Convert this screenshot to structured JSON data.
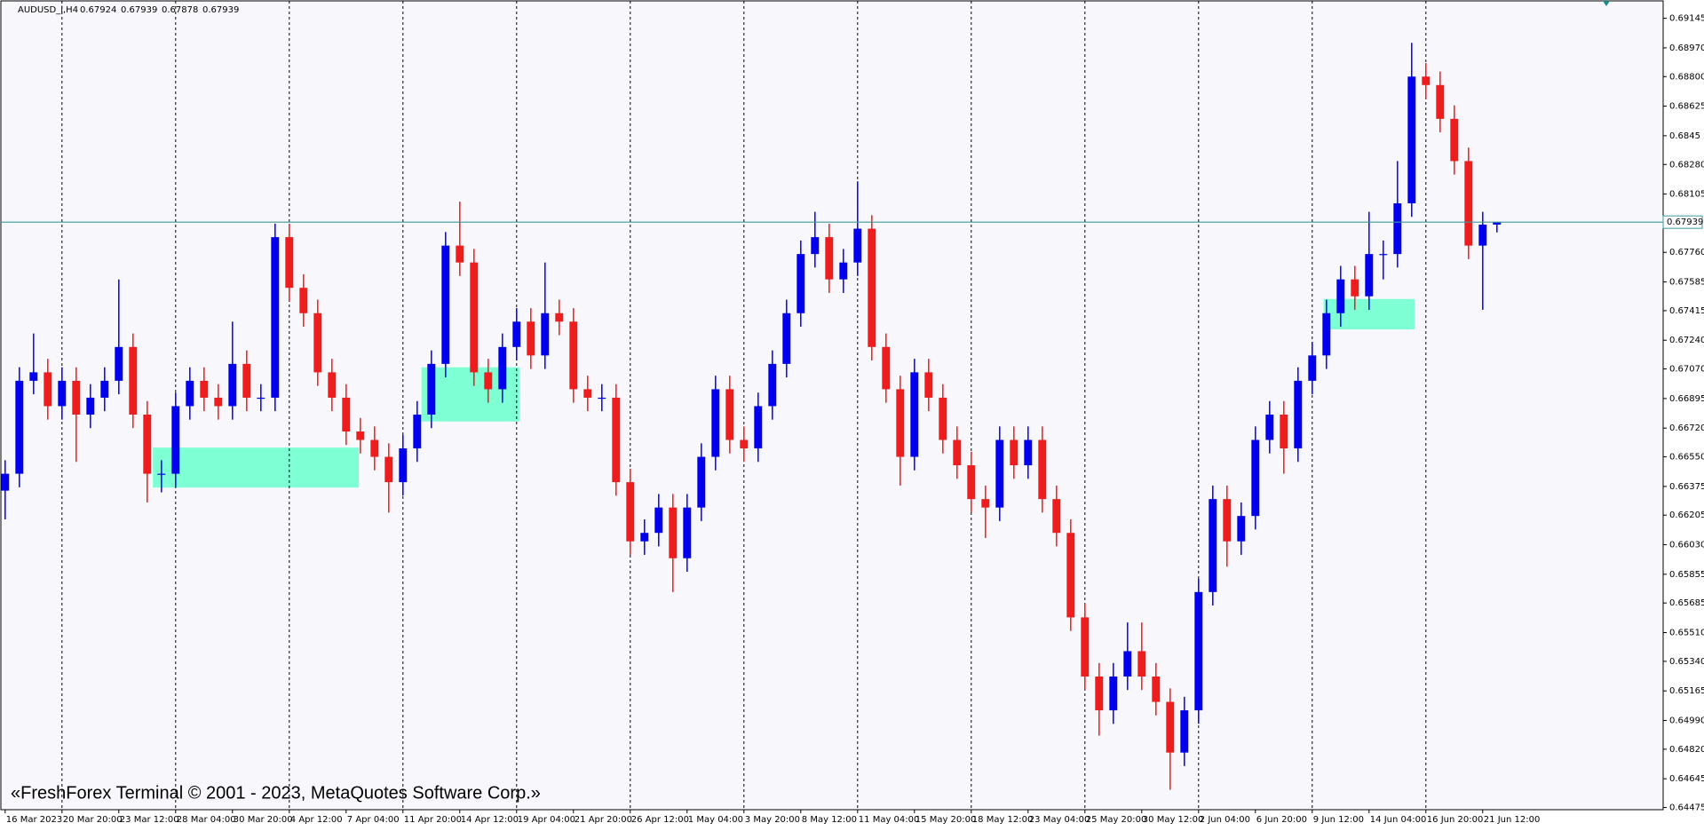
{
  "chart_data": {
    "type": "candlestick",
    "title": "AUDUSD_i,H4",
    "watermark": "«FreshForex Terminal © 2001 - 2023, MetaQuotes Software Corp.»",
    "up_color": "#0000ee",
    "down_color": "#ee1c1c",
    "zone_color": "#7fffd4",
    "price_line_color": "#3a9a9a",
    "grid": true,
    "xlim": [
      -0.3,
      116.7
    ],
    "ylim": [
      0.64462,
      0.69248
    ],
    "xticks": [
      {
        "value": 0,
        "label": "16 Mar 2023"
      },
      {
        "value": 4,
        "label": "20 Mar 20:00"
      },
      {
        "value": 8,
        "label": "23 Mar 12:00"
      },
      {
        "value": 12,
        "label": "28 Mar 04:00"
      },
      {
        "value": 16,
        "label": "30 Mar 20:00"
      },
      {
        "value": 20,
        "label": "4 Apr 12:00"
      },
      {
        "value": 24,
        "label": "7 Apr 04:00"
      },
      {
        "value": 28,
        "label": "11 Apr 20:00"
      },
      {
        "value": 32,
        "label": "14 Apr 12:00"
      },
      {
        "value": 36,
        "label": "19 Apr 04:00"
      },
      {
        "value": 40,
        "label": "21 Apr 20:00"
      },
      {
        "value": 44,
        "label": "26 Apr 12:00"
      },
      {
        "value": 48,
        "label": "1 May 04:00"
      },
      {
        "value": 52,
        "label": "3 May 20:00"
      },
      {
        "value": 56,
        "label": "8 May 12:00"
      },
      {
        "value": 60,
        "label": "11 May 04:00"
      },
      {
        "value": 64,
        "label": "15 May 20:00"
      },
      {
        "value": 68,
        "label": "18 May 12:00"
      },
      {
        "value": 72,
        "label": "23 May 04:00"
      },
      {
        "value": 76,
        "label": "25 May 20:00"
      },
      {
        "value": 80,
        "label": "30 May 12:00"
      },
      {
        "value": 84,
        "label": "2 Jun 04:00"
      },
      {
        "value": 88,
        "label": "6 Jun 20:00"
      },
      {
        "value": 92,
        "label": "9 Jun 12:00"
      },
      {
        "value": 96,
        "label": "14 Jun 04:00"
      },
      {
        "value": 100,
        "label": "16 Jun 20:00"
      },
      {
        "value": 104,
        "label": "21 Jun 12:00"
      }
    ],
    "yticks": [
      0.69145,
      {
        "value": 0.6897,
        "label": "0.68970"
      },
      {
        "value": 0.688,
        "label": "0.68800"
      },
      0.68625,
      0.6845,
      {
        "value": 0.6828,
        "label": "0.68280"
      },
      0.68105,
      {
        "value": 0.6776,
        "label": "0.67760"
      },
      0.67585,
      0.67415,
      {
        "value": 0.6724,
        "label": "0.67240"
      },
      {
        "value": 0.6707,
        "label": "0.67070"
      },
      0.66895,
      {
        "value": 0.6672,
        "label": "0.66720"
      },
      {
        "value": 0.6655,
        "label": "0.66550"
      },
      0.66375,
      0.66205,
      {
        "value": 0.6603,
        "label": "0.66030"
      },
      0.65855,
      0.65685,
      {
        "value": 0.6551,
        "label": "0.65510"
      },
      {
        "value": 0.6534,
        "label": "0.65340"
      },
      0.65165,
      {
        "value": 0.6499,
        "label": "0.64990"
      },
      {
        "value": 0.6482,
        "label": "0.64820"
      },
      0.64645,
      0.64475
    ],
    "zones": [
      {
        "x0": 10.4,
        "x1": 24.9,
        "y0": 0.66368,
        "y1": 0.66605
      },
      {
        "x0": 29.3,
        "x1": 36.2,
        "y0": 0.66759,
        "y1": 0.6708
      },
      {
        "x0": 92.8,
        "x1": 99.2,
        "y0": 0.67304,
        "y1": 0.67484
      }
    ],
    "open": [
      0.6635,
      0.6645,
      0.67,
      0.6705,
      0.6685,
      0.67,
      0.668,
      0.669,
      0.67,
      0.672,
      0.668,
      0.6645,
      0.6645,
      0.6685,
      0.67,
      0.669,
      0.6685,
      0.671,
      0.669,
      0.669,
      0.6785,
      0.6755,
      0.674,
      0.6705,
      0.669,
      0.667,
      0.6665,
      0.6655,
      0.664,
      0.666,
      0.668,
      0.671,
      0.678,
      0.677,
      0.6705,
      0.6695,
      0.672,
      0.6735,
      0.6715,
      0.674,
      0.6735,
      0.6695,
      0.669,
      0.669,
      0.664,
      0.6605,
      0.661,
      0.6625,
      0.6595,
      0.6625,
      0.6655,
      0.6695,
      0.6665,
      0.666,
      0.6685,
      0.671,
      0.674,
      0.6775,
      0.6785,
      0.676,
      0.677,
      0.679,
      0.672,
      0.6695,
      0.6655,
      0.6705,
      0.669,
      0.6665,
      0.665,
      0.663,
      0.6625,
      0.6665,
      0.665,
      0.6665,
      0.663,
      0.661,
      0.656,
      0.6525,
      0.6505,
      0.6525,
      0.654,
      0.6525,
      0.651,
      0.648,
      0.6505,
      0.6575,
      0.663,
      0.6605,
      0.662,
      0.6665,
      0.668,
      0.666,
      0.67,
      0.6715,
      0.674,
      0.676,
      0.675,
      0.6775,
      0.6775,
      0.6805,
      0.688,
      0.6875,
      0.6855,
      0.683,
      0.678,
      0.67924
    ],
    "high": [
      0.6653,
      0.6708,
      0.6728,
      0.6713,
      0.6708,
      0.6708,
      0.6698,
      0.6708,
      0.676,
      0.6728,
      0.6688,
      0.6653,
      0.6693,
      0.6708,
      0.6708,
      0.6698,
      0.6735,
      0.6718,
      0.6698,
      0.6793,
      0.6793,
      0.6763,
      0.6748,
      0.6713,
      0.6698,
      0.6678,
      0.6673,
      0.6663,
      0.6668,
      0.6688,
      0.6718,
      0.6788,
      0.6806,
      0.6778,
      0.6713,
      0.6728,
      0.6743,
      0.6743,
      0.677,
      0.6748,
      0.6743,
      0.6703,
      0.6698,
      0.6698,
      0.6648,
      0.6618,
      0.6633,
      0.6633,
      0.6633,
      0.6663,
      0.6703,
      0.6703,
      0.6673,
      0.6693,
      0.6718,
      0.6748,
      0.6783,
      0.68,
      0.6793,
      0.6778,
      0.6818,
      0.6798,
      0.6728,
      0.6703,
      0.6713,
      0.6713,
      0.6698,
      0.6673,
      0.6658,
      0.6638,
      0.6673,
      0.6673,
      0.6673,
      0.6673,
      0.6638,
      0.6618,
      0.6568,
      0.6533,
      0.6533,
      0.6557,
      0.6557,
      0.6533,
      0.6518,
      0.6513,
      0.6583,
      0.6638,
      0.6638,
      0.6628,
      0.6673,
      0.6688,
      0.6688,
      0.6708,
      0.6723,
      0.6748,
      0.6768,
      0.6768,
      0.68,
      0.6783,
      0.683,
      0.69,
      0.6888,
      0.6883,
      0.6863,
      0.6838,
      0.68,
      0.67939
    ],
    "low": [
      0.6618,
      0.6637,
      0.6692,
      0.6677,
      0.6677,
      0.6652,
      0.6672,
      0.6682,
      0.6692,
      0.6672,
      0.6628,
      0.6634,
      0.6637,
      0.6677,
      0.6682,
      0.6677,
      0.6677,
      0.6682,
      0.6682,
      0.6682,
      0.6747,
      0.6732,
      0.6697,
      0.6682,
      0.6662,
      0.6657,
      0.6647,
      0.6622,
      0.6632,
      0.6652,
      0.6672,
      0.6702,
      0.6762,
      0.6697,
      0.6687,
      0.6687,
      0.6712,
      0.6707,
      0.6707,
      0.6727,
      0.6687,
      0.6682,
      0.6682,
      0.6632,
      0.6597,
      0.6597,
      0.6602,
      0.6575,
      0.6587,
      0.6617,
      0.6647,
      0.6657,
      0.6652,
      0.6652,
      0.6677,
      0.6702,
      0.6732,
      0.6767,
      0.6752,
      0.6752,
      0.6762,
      0.6712,
      0.6687,
      0.6638,
      0.6647,
      0.6682,
      0.6657,
      0.6642,
      0.6622,
      0.6607,
      0.6617,
      0.6642,
      0.6642,
      0.6622,
      0.6602,
      0.6552,
      0.6517,
      0.649,
      0.6497,
      0.6517,
      0.6517,
      0.6502,
      0.6458,
      0.6472,
      0.6497,
      0.6567,
      0.659,
      0.6597,
      0.6612,
      0.6657,
      0.6645,
      0.6652,
      0.6692,
      0.6707,
      0.6732,
      0.6742,
      0.6742,
      0.676,
      0.6767,
      0.6797,
      0.6867,
      0.6847,
      0.6822,
      0.6772,
      0.6742,
      0.67878
    ],
    "close": [
      0.6645,
      0.67,
      0.6705,
      0.6685,
      0.67,
      0.668,
      0.669,
      0.67,
      0.672,
      0.668,
      0.6645,
      0.6645,
      0.6685,
      0.67,
      0.669,
      0.6685,
      0.671,
      0.669,
      0.669,
      0.6785,
      0.6755,
      0.674,
      0.6705,
      0.669,
      0.667,
      0.6665,
      0.6655,
      0.664,
      0.666,
      0.668,
      0.671,
      0.678,
      0.677,
      0.6705,
      0.6695,
      0.672,
      0.6735,
      0.6715,
      0.674,
      0.6735,
      0.6695,
      0.669,
      0.669,
      0.664,
      0.6605,
      0.661,
      0.6625,
      0.6595,
      0.6625,
      0.6655,
      0.6695,
      0.6665,
      0.666,
      0.6685,
      0.671,
      0.674,
      0.6775,
      0.6785,
      0.676,
      0.677,
      0.679,
      0.672,
      0.6695,
      0.6655,
      0.6705,
      0.669,
      0.6665,
      0.665,
      0.663,
      0.6625,
      0.6665,
      0.665,
      0.6665,
      0.663,
      0.661,
      0.656,
      0.6525,
      0.6505,
      0.6525,
      0.654,
      0.6525,
      0.651,
      0.648,
      0.6505,
      0.6575,
      0.663,
      0.6605,
      0.662,
      0.6665,
      0.668,
      0.666,
      0.67,
      0.6715,
      0.674,
      0.676,
      0.675,
      0.6775,
      0.6775,
      0.6805,
      0.688,
      0.6875,
      0.6855,
      0.683,
      0.678,
      0.67924,
      0.67939
    ]
  }
}
